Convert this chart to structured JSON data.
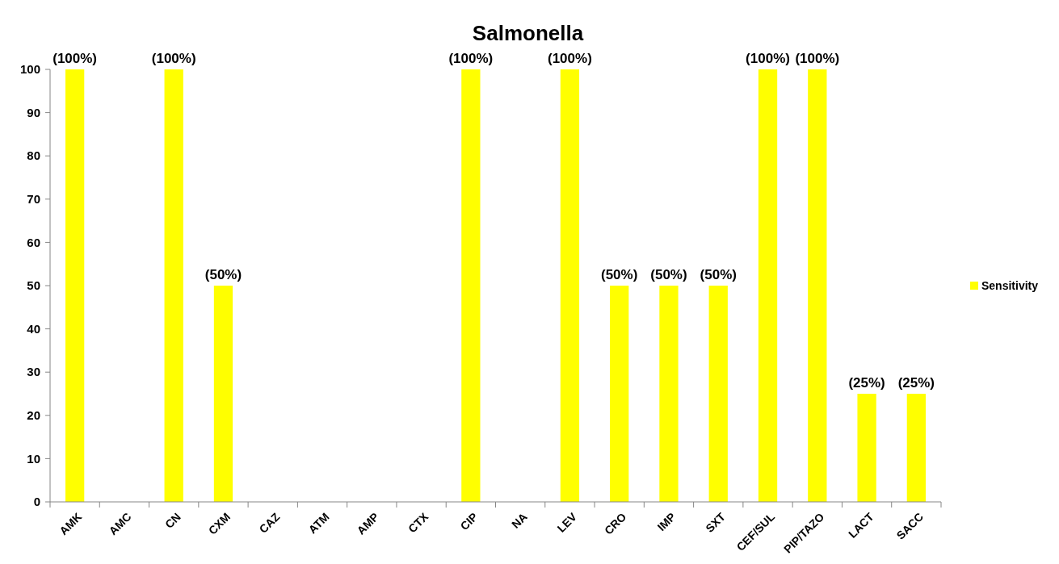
{
  "chart_data": {
    "type": "bar",
    "title": "Salmonella",
    "categories": [
      "AMK",
      "AMC",
      "CN",
      "CXM",
      "CAZ",
      "ATM",
      "AMP",
      "CTX",
      "CIP",
      "NA",
      "LEV",
      "CRO",
      "IMP",
      "SXT",
      "CEF/SUL",
      "PIP/TAZO",
      "LACT",
      "SACC"
    ],
    "series": [
      {
        "name": "Sensitivity",
        "color": "#ffff00",
        "values": [
          100,
          0,
          100,
          50,
          0,
          0,
          0,
          0,
          100,
          0,
          100,
          50,
          50,
          50,
          100,
          100,
          25,
          25
        ],
        "value_labels": [
          "(100%)",
          null,
          "(100%)",
          "(50%)",
          null,
          null,
          null,
          null,
          "(100%)",
          null,
          "(100%)",
          "(50%)",
          "(50%)",
          "(50%)",
          "(100%)",
          "(100%)",
          "(25%)",
          "(25%)"
        ]
      }
    ],
    "ylim": [
      0,
      100
    ],
    "yticks": [
      0,
      10,
      20,
      30,
      40,
      50,
      60,
      70,
      80,
      90,
      100
    ],
    "grid": false,
    "legend": "right"
  }
}
